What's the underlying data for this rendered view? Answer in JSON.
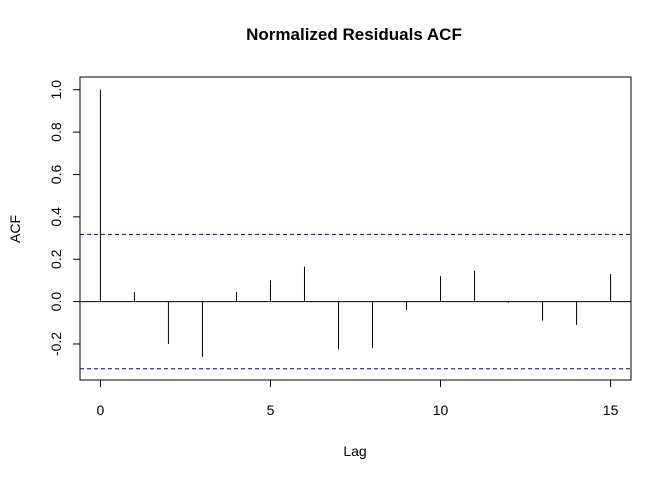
{
  "chart_data": {
    "type": "bar",
    "title": "Normalized Residuals ACF",
    "xlabel": "Lag",
    "ylabel": "ACF",
    "lags": [
      0,
      1,
      2,
      3,
      4,
      5,
      6,
      7,
      8,
      9,
      10,
      11,
      12,
      13,
      14,
      15
    ],
    "values": [
      1.0,
      0.045,
      -0.2,
      -0.26,
      0.045,
      0.1,
      0.165,
      -0.225,
      -0.22,
      -0.04,
      0.12,
      0.145,
      -0.005,
      -0.09,
      -0.11,
      0.13
    ],
    "confidence_bounds": [
      -0.317,
      0.317
    ],
    "xlim": [
      -0.6,
      15.6
    ],
    "ylim": [
      -0.37,
      1.06
    ],
    "xticks": [
      "0",
      "5",
      "10",
      "15"
    ],
    "yticks": [
      "-0.2",
      "0.0",
      "0.2",
      "0.4",
      "0.6",
      "0.8",
      "1.0"
    ],
    "bound_color": "#0000cc",
    "grid": false,
    "legend": "none"
  }
}
